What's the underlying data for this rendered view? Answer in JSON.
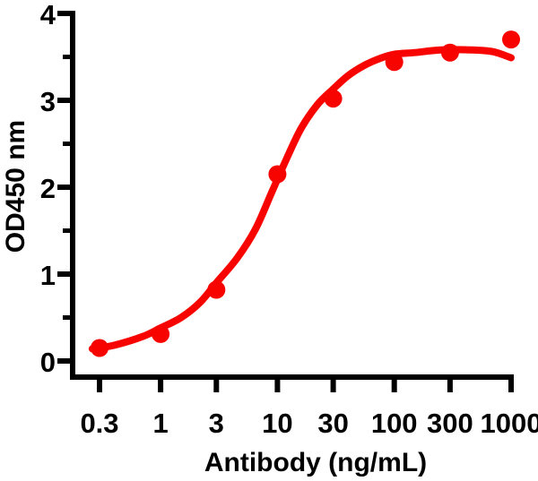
{
  "chart_data": {
    "type": "scatter",
    "title": "",
    "xlabel": "Antibody (ng/mL)",
    "ylabel": "OD450 nm",
    "x_scale": "log",
    "xlim": [
      0.25,
      1050
    ],
    "ylim": [
      0,
      4
    ],
    "x_ticks": [
      0.3,
      1,
      3,
      10,
      30,
      100,
      300,
      1000
    ],
    "x_tick_labels": [
      "0.3",
      "1",
      "3",
      "10",
      "30",
      "100",
      "300",
      "1000"
    ],
    "y_ticks": [
      0,
      1,
      2,
      3,
      4
    ],
    "y_tick_labels": [
      "0",
      "1",
      "2",
      "3",
      "4"
    ],
    "y_minor_ticks": [
      0.5,
      1.5,
      2.5,
      3.5
    ],
    "grid": false,
    "legend": "none",
    "background_color": "#ffffff",
    "axis_color": "#000000",
    "accent_color": "#f80400",
    "series": [
      {
        "name": "antibody-binding-points",
        "type": "scatter",
        "marker": "circle",
        "marker_diameter_px": 20,
        "color": "#f80400",
        "x": [
          0.3,
          1,
          3,
          10,
          30,
          100,
          300,
          1000
        ],
        "y": [
          0.15,
          0.31,
          0.82,
          2.15,
          3.02,
          3.44,
          3.55,
          3.7
        ]
      },
      {
        "name": "sigmoidal-fit-curve",
        "type": "line",
        "stroke_width_px": 8,
        "color": "#f80400",
        "x": [
          0.26,
          0.4,
          0.7,
          1,
          1.5,
          2.2,
          3,
          4.5,
          6.5,
          9,
          12,
          16,
          22,
          30,
          40,
          55,
          75,
          100,
          150,
          250,
          450,
          700,
          1000
        ],
        "y": [
          0.14,
          0.18,
          0.28,
          0.38,
          0.5,
          0.68,
          0.9,
          1.18,
          1.52,
          1.95,
          2.33,
          2.68,
          2.95,
          3.13,
          3.28,
          3.4,
          3.48,
          3.53,
          3.55,
          3.58,
          3.58,
          3.56,
          3.49
        ]
      }
    ]
  }
}
